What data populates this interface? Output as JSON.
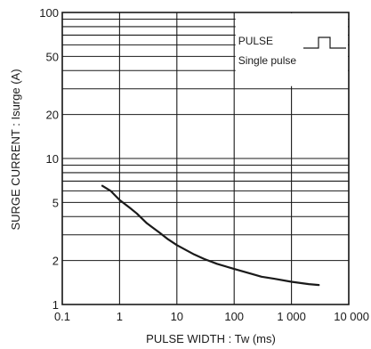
{
  "chart_data": {
    "type": "line",
    "title": "",
    "xlabel": "PULSE  WIDTH : Tw (ms)",
    "ylabel": "SURGE  CURRENT : Isurge (A)",
    "xscale": "log",
    "yscale": "log",
    "xlim": [
      0.1,
      10000
    ],
    "ylim": [
      1,
      100
    ],
    "grid": true,
    "x_ticks": [
      {
        "value": 0.1,
        "label": "0.1"
      },
      {
        "value": 1,
        "label": "1"
      },
      {
        "value": 10,
        "label": "10"
      },
      {
        "value": 100,
        "label": "100"
      },
      {
        "value": 1000,
        "label": "1 000"
      },
      {
        "value": 10000,
        "label": "10 000"
      }
    ],
    "y_ticks": [
      {
        "value": 1,
        "label": "1"
      },
      {
        "value": 2,
        "label": "2"
      },
      {
        "value": 5,
        "label": "5"
      },
      {
        "value": 10,
        "label": "10"
      },
      {
        "value": 20,
        "label": "20"
      },
      {
        "value": 50,
        "label": "50"
      },
      {
        "value": 100,
        "label": "100"
      }
    ],
    "y_grid_values": [
      1,
      2,
      3,
      4,
      5,
      6,
      7,
      8,
      9,
      10,
      20,
      30,
      40,
      50,
      60,
      70,
      80,
      90,
      100
    ],
    "x_grid_values": [
      0.1,
      1,
      10,
      100,
      1000,
      10000
    ],
    "legend": {
      "position": "top-right",
      "line1": "PULSE",
      "line2": "Single pulse"
    },
    "series": [
      {
        "x": [
          0.5,
          0.7,
          1,
          1.5,
          2,
          3,
          5,
          7,
          10,
          20,
          30,
          50,
          100,
          200,
          300,
          500,
          1000,
          2000,
          3000
        ],
        "values": [
          6.5,
          6.0,
          5.2,
          4.6,
          4.2,
          3.6,
          3.1,
          2.8,
          2.55,
          2.2,
          2.05,
          1.9,
          1.75,
          1.62,
          1.55,
          1.5,
          1.43,
          1.38,
          1.36
        ]
      }
    ]
  }
}
